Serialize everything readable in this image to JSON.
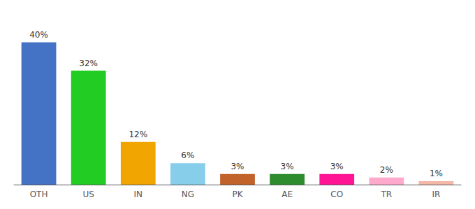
{
  "chart_data": {
    "type": "bar",
    "categories": [
      "OTH",
      "US",
      "IN",
      "NG",
      "PK",
      "AE",
      "CO",
      "TR",
      "IR"
    ],
    "values": [
      40,
      32,
      12,
      6,
      3,
      3,
      3,
      2,
      1
    ],
    "value_labels": [
      "40%",
      "32%",
      "12%",
      "6%",
      "3%",
      "3%",
      "3%",
      "2%",
      "1%"
    ],
    "colors": [
      "#4472c4",
      "#22cc22",
      "#f0a500",
      "#87ceeb",
      "#c0622a",
      "#2e8b2e",
      "#ff1493",
      "#ffaacc",
      "#f4b8a8"
    ],
    "ylim": [
      0,
      46
    ],
    "data_labels": true,
    "tick_labels": "x",
    "grid": false
  }
}
